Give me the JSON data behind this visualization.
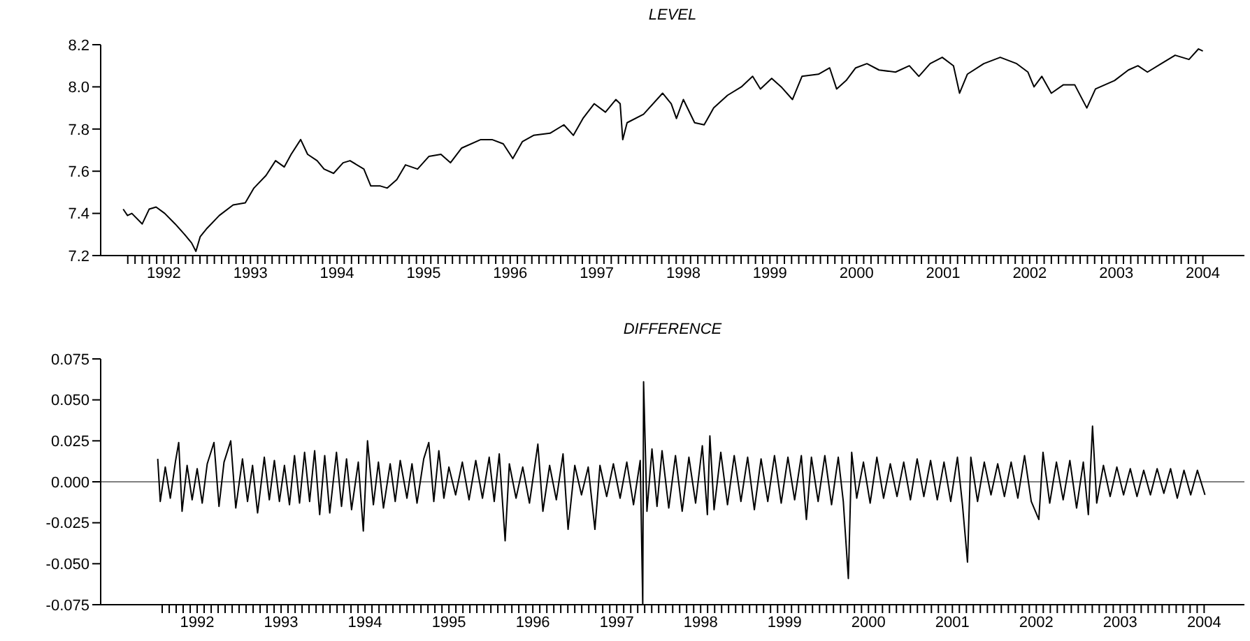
{
  "chart_data": [
    {
      "type": "line",
      "title": "LEVEL",
      "color": "#000000",
      "x": [
        1991.53,
        1991.58,
        1991.63,
        1991.75,
        1991.83,
        1991.91,
        1992.01,
        1992.13,
        1992.24,
        1992.32,
        1992.37,
        1992.42,
        1992.5,
        1992.64,
        1992.8,
        1992.94,
        1993.04,
        1993.18,
        1993.29,
        1993.39,
        1993.47,
        1993.58,
        1993.66,
        1993.77,
        1993.85,
        1993.96,
        1994.07,
        1994.15,
        1994.31,
        1994.39,
        1994.5,
        1994.58,
        1994.69,
        1994.79,
        1994.93,
        1995.06,
        1995.2,
        1995.31,
        1995.44,
        1995.66,
        1995.79,
        1995.92,
        1996.03,
        1996.14,
        1996.27,
        1996.46,
        1996.62,
        1996.73,
        1996.84,
        1996.97,
        1997.1,
        1997.22,
        1997.27,
        1997.3,
        1997.35,
        1997.54,
        1997.76,
        1997.86,
        1997.92,
        1998.0,
        1998.13,
        1998.24,
        1998.35,
        1998.51,
        1998.67,
        1998.8,
        1998.89,
        1999.02,
        1999.13,
        1999.26,
        1999.37,
        1999.56,
        1999.69,
        1999.77,
        1999.88,
        1999.99,
        2000.12,
        2000.26,
        2000.45,
        2000.61,
        2000.72,
        2000.85,
        2000.99,
        2001.12,
        2001.19,
        2001.28,
        2001.47,
        2001.66,
        2001.85,
        2001.98,
        2002.05,
        2002.14,
        2002.25,
        2002.39,
        2002.52,
        2002.66,
        2002.76,
        2002.98,
        2003.14,
        2003.25,
        2003.36,
        2003.52,
        2003.68,
        2003.84,
        2003.95,
        2004.0
      ],
      "values": [
        7.42,
        7.39,
        7.4,
        7.35,
        7.42,
        7.43,
        7.4,
        7.35,
        7.3,
        7.26,
        7.22,
        7.29,
        7.33,
        7.39,
        7.44,
        7.45,
        7.52,
        7.58,
        7.65,
        7.62,
        7.68,
        7.75,
        7.68,
        7.65,
        7.61,
        7.59,
        7.64,
        7.65,
        7.61,
        7.53,
        7.53,
        7.52,
        7.56,
        7.63,
        7.61,
        7.67,
        7.68,
        7.64,
        7.71,
        7.75,
        7.75,
        7.73,
        7.66,
        7.74,
        7.77,
        7.78,
        7.82,
        7.77,
        7.85,
        7.92,
        7.88,
        7.94,
        7.92,
        7.75,
        7.83,
        7.87,
        7.97,
        7.92,
        7.85,
        7.94,
        7.83,
        7.82,
        7.9,
        7.96,
        8.0,
        8.05,
        7.99,
        8.04,
        8.0,
        7.94,
        8.05,
        8.06,
        8.09,
        7.99,
        8.03,
        8.09,
        8.11,
        8.08,
        8.07,
        8.1,
        8.05,
        8.11,
        8.14,
        8.1,
        7.97,
        8.06,
        8.11,
        8.14,
        8.11,
        8.07,
        8.0,
        8.05,
        7.97,
        8.01,
        8.01,
        7.9,
        7.99,
        8.03,
        8.08,
        8.1,
        8.07,
        8.11,
        8.15,
        8.13,
        8.18,
        8.17
      ],
      "xlim": [
        1991.27,
        2004.48
      ],
      "ylim": [
        7.2,
        8.2
      ],
      "yticks": [
        7.2,
        7.4,
        7.6,
        7.8,
        {
          "value": 8.0,
          "label": "8.0"
        },
        8.2
      ],
      "xticks": [
        {
          "value": 1991.583,
          "label": null
        },
        {
          "value": 1991.667,
          "label": null
        },
        {
          "value": 1991.75,
          "label": null
        },
        {
          "value": 1991.833,
          "label": null
        },
        {
          "value": 1991.917,
          "label": null
        },
        1992,
        {
          "value": 1992.083,
          "label": null
        },
        {
          "value": 1992.167,
          "label": null
        },
        {
          "value": 1992.25,
          "label": null
        },
        {
          "value": 1992.333,
          "label": null
        },
        {
          "value": 1992.417,
          "label": null
        },
        {
          "value": 1992.5,
          "label": null
        },
        {
          "value": 1992.583,
          "label": null
        },
        {
          "value": 1992.667,
          "label": null
        },
        {
          "value": 1992.75,
          "label": null
        },
        {
          "value": 1992.833,
          "label": null
        },
        {
          "value": 1992.917,
          "label": null
        },
        1993,
        {
          "value": 1993.083,
          "label": null
        },
        {
          "value": 1993.167,
          "label": null
        },
        {
          "value": 1993.25,
          "label": null
        },
        {
          "value": 1993.333,
          "label": null
        },
        {
          "value": 1993.417,
          "label": null
        },
        {
          "value": 1993.5,
          "label": null
        },
        {
          "value": 1993.583,
          "label": null
        },
        {
          "value": 1993.667,
          "label": null
        },
        {
          "value": 1993.75,
          "label": null
        },
        {
          "value": 1993.833,
          "label": null
        },
        {
          "value": 1993.917,
          "label": null
        },
        1994,
        {
          "value": 1994.083,
          "label": null
        },
        {
          "value": 1994.167,
          "label": null
        },
        {
          "value": 1994.25,
          "label": null
        },
        {
          "value": 1994.333,
          "label": null
        },
        {
          "value": 1994.417,
          "label": null
        },
        {
          "value": 1994.5,
          "label": null
        },
        {
          "value": 1994.583,
          "label": null
        },
        {
          "value": 1994.667,
          "label": null
        },
        {
          "value": 1994.75,
          "label": null
        },
        {
          "value": 1994.833,
          "label": null
        },
        {
          "value": 1994.917,
          "label": null
        },
        1995,
        {
          "value": 1995.083,
          "label": null
        },
        {
          "value": 1995.167,
          "label": null
        },
        {
          "value": 1995.25,
          "label": null
        },
        {
          "value": 1995.333,
          "label": null
        },
        {
          "value": 1995.417,
          "label": null
        },
        {
          "value": 1995.5,
          "label": null
        },
        {
          "value": 1995.583,
          "label": null
        },
        {
          "value": 1995.667,
          "label": null
        },
        {
          "value": 1995.75,
          "label": null
        },
        {
          "value": 1995.833,
          "label": null
        },
        {
          "value": 1995.917,
          "label": null
        },
        1996,
        {
          "value": 1996.083,
          "label": null
        },
        {
          "value": 1996.167,
          "label": null
        },
        {
          "value": 1996.25,
          "label": null
        },
        {
          "value": 1996.333,
          "label": null
        },
        {
          "value": 1996.417,
          "label": null
        },
        {
          "value": 1996.5,
          "label": null
        },
        {
          "value": 1996.583,
          "label": null
        },
        {
          "value": 1996.667,
          "label": null
        },
        {
          "value": 1996.75,
          "label": null
        },
        {
          "value": 1996.833,
          "label": null
        },
        {
          "value": 1996.917,
          "label": null
        },
        1997,
        {
          "value": 1997.083,
          "label": null
        },
        {
          "value": 1997.167,
          "label": null
        },
        {
          "value": 1997.25,
          "label": null
        },
        {
          "value": 1997.333,
          "label": null
        },
        {
          "value": 1997.417,
          "label": null
        },
        {
          "value": 1997.5,
          "label": null
        },
        {
          "value": 1997.583,
          "label": null
        },
        {
          "value": 1997.667,
          "label": null
        },
        {
          "value": 1997.75,
          "label": null
        },
        {
          "value": 1997.833,
          "label": null
        },
        {
          "value": 1997.917,
          "label": null
        },
        1998,
        {
          "value": 1998.083,
          "label": null
        },
        {
          "value": 1998.167,
          "label": null
        },
        {
          "value": 1998.25,
          "label": null
        },
        {
          "value": 1998.333,
          "label": null
        },
        {
          "value": 1998.417,
          "label": null
        },
        {
          "value": 1998.5,
          "label": null
        },
        {
          "value": 1998.583,
          "label": null
        },
        {
          "value": 1998.667,
          "label": null
        },
        {
          "value": 1998.75,
          "label": null
        },
        {
          "value": 1998.833,
          "label": null
        },
        {
          "value": 1998.917,
          "label": null
        },
        1999,
        {
          "value": 1999.083,
          "label": null
        },
        {
          "value": 1999.167,
          "label": null
        },
        {
          "value": 1999.25,
          "label": null
        },
        {
          "value": 1999.333,
          "label": null
        },
        {
          "value": 1999.417,
          "label": null
        },
        {
          "value": 1999.5,
          "label": null
        },
        {
          "value": 1999.583,
          "label": null
        },
        {
          "value": 1999.667,
          "label": null
        },
        {
          "value": 1999.75,
          "label": null
        },
        {
          "value": 1999.833,
          "label": null
        },
        {
          "value": 1999.917,
          "label": null
        },
        2000,
        {
          "value": 2000.083,
          "label": null
        },
        {
          "value": 2000.167,
          "label": null
        },
        {
          "value": 2000.25,
          "label": null
        },
        {
          "value": 2000.333,
          "label": null
        },
        {
          "value": 2000.417,
          "label": null
        },
        {
          "value": 2000.5,
          "label": null
        },
        {
          "value": 2000.583,
          "label": null
        },
        {
          "value": 2000.667,
          "label": null
        },
        {
          "value": 2000.75,
          "label": null
        },
        {
          "value": 2000.833,
          "label": null
        },
        {
          "value": 2000.917,
          "label": null
        },
        2001,
        {
          "value": 2001.083,
          "label": null
        },
        {
          "value": 2001.167,
          "label": null
        },
        {
          "value": 2001.25,
          "label": null
        },
        {
          "value": 2001.333,
          "label": null
        },
        {
          "value": 2001.417,
          "label": null
        },
        {
          "value": 2001.5,
          "label": null
        },
        {
          "value": 2001.583,
          "label": null
        },
        {
          "value": 2001.667,
          "label": null
        },
        {
          "value": 2001.75,
          "label": null
        },
        {
          "value": 2001.833,
          "label": null
        },
        {
          "value": 2001.917,
          "label": null
        },
        2002,
        {
          "value": 2002.083,
          "label": null
        },
        {
          "value": 2002.167,
          "label": null
        },
        {
          "value": 2002.25,
          "label": null
        },
        {
          "value": 2002.333,
          "label": null
        },
        {
          "value": 2002.417,
          "label": null
        },
        {
          "value": 2002.5,
          "label": null
        },
        {
          "value": 2002.583,
          "label": null
        },
        {
          "value": 2002.667,
          "label": null
        },
        {
          "value": 2002.75,
          "label": null
        },
        {
          "value": 2002.833,
          "label": null
        },
        {
          "value": 2002.917,
          "label": null
        },
        2003,
        {
          "value": 2003.083,
          "label": null
        },
        {
          "value": 2003.167,
          "label": null
        },
        {
          "value": 2003.25,
          "label": null
        },
        {
          "value": 2003.333,
          "label": null
        },
        {
          "value": 2003.417,
          "label": null
        },
        {
          "value": 2003.5,
          "label": null
        },
        {
          "value": 2003.583,
          "label": null
        },
        {
          "value": 2003.667,
          "label": null
        },
        {
          "value": 2003.75,
          "label": null
        },
        {
          "value": 2003.833,
          "label": null
        },
        {
          "value": 2003.917,
          "label": null
        },
        2004
      ]
    },
    {
      "type": "line",
      "title": "DIFFERENCE",
      "color": "#000000",
      "x": [
        1991.53,
        1991.56,
        1991.62,
        1991.68,
        1991.74,
        1991.78,
        1991.82,
        1991.88,
        1991.94,
        1992.0,
        1992.06,
        1992.12,
        1992.2,
        1992.26,
        1992.32,
        1992.4,
        1992.46,
        1992.54,
        1992.6,
        1992.66,
        1992.72,
        1992.8,
        1992.86,
        1992.92,
        1992.98,
        1993.04,
        1993.1,
        1993.16,
        1993.22,
        1993.28,
        1993.34,
        1993.4,
        1993.46,
        1993.52,
        1993.58,
        1993.66,
        1993.72,
        1993.78,
        1993.84,
        1993.92,
        1993.98,
        1994.03,
        1994.1,
        1994.16,
        1994.22,
        1994.3,
        1994.36,
        1994.42,
        1994.5,
        1994.56,
        1994.62,
        1994.7,
        1994.76,
        1994.82,
        1994.88,
        1994.94,
        1995.0,
        1995.08,
        1995.16,
        1995.24,
        1995.32,
        1995.4,
        1995.48,
        1995.54,
        1995.6,
        1995.67,
        1995.72,
        1995.8,
        1995.88,
        1995.96,
        1996.06,
        1996.12,
        1996.2,
        1996.28,
        1996.36,
        1996.42,
        1996.5,
        1996.58,
        1996.66,
        1996.74,
        1996.8,
        1996.88,
        1996.96,
        1997.04,
        1997.12,
        1997.2,
        1997.28,
        1997.31,
        1997.32,
        1997.36,
        1997.42,
        1997.48,
        1997.54,
        1997.62,
        1997.7,
        1997.78,
        1997.86,
        1997.94,
        1998.02,
        1998.08,
        1998.11,
        1998.16,
        1998.24,
        1998.32,
        1998.4,
        1998.48,
        1998.56,
        1998.64,
        1998.72,
        1998.8,
        1998.88,
        1998.96,
        1999.04,
        1999.12,
        1999.2,
        1999.26,
        1999.32,
        1999.4,
        1999.48,
        1999.56,
        1999.64,
        1999.7,
        1999.76,
        1999.8,
        1999.86,
        1999.94,
        2000.02,
        2000.1,
        2000.18,
        2000.26,
        2000.34,
        2000.42,
        2000.5,
        2000.58,
        2000.66,
        2000.74,
        2000.82,
        2000.9,
        2000.98,
        2001.06,
        2001.12,
        2001.18,
        2001.22,
        2001.3,
        2001.38,
        2001.46,
        2001.54,
        2001.62,
        2001.7,
        2001.78,
        2001.86,
        2001.94,
        2002.03,
        2002.08,
        2002.16,
        2002.24,
        2002.32,
        2002.4,
        2002.48,
        2002.56,
        2002.62,
        2002.67,
        2002.72,
        2002.8,
        2002.88,
        2002.96,
        2003.04,
        2003.12,
        2003.2,
        2003.28,
        2003.36,
        2003.44,
        2003.52,
        2003.6,
        2003.68,
        2003.76,
        2003.84,
        2003.92,
        2004.01
      ],
      "values": [
        0.014,
        -0.012,
        0.009,
        -0.01,
        0.012,
        0.024,
        -0.018,
        0.01,
        -0.011,
        0.008,
        -0.013,
        0.011,
        0.024,
        -0.015,
        0.012,
        0.025,
        -0.016,
        0.014,
        -0.012,
        0.01,
        -0.019,
        0.015,
        -0.011,
        0.013,
        -0.012,
        0.01,
        -0.014,
        0.016,
        -0.013,
        0.018,
        -0.012,
        0.019,
        -0.02,
        0.016,
        -0.019,
        0.018,
        -0.015,
        0.014,
        -0.017,
        0.012,
        -0.03,
        0.025,
        -0.014,
        0.012,
        -0.016,
        0.011,
        -0.012,
        0.013,
        -0.01,
        0.011,
        -0.013,
        0.014,
        0.024,
        -0.012,
        0.019,
        -0.01,
        0.009,
        -0.008,
        0.012,
        -0.011,
        0.013,
        -0.01,
        0.015,
        -0.012,
        0.017,
        -0.036,
        0.011,
        -0.01,
        0.009,
        -0.013,
        0.023,
        -0.018,
        0.01,
        -0.011,
        0.017,
        -0.029,
        0.01,
        -0.008,
        0.009,
        -0.029,
        0.01,
        -0.009,
        0.011,
        -0.01,
        0.012,
        -0.014,
        0.013,
        -0.075,
        0.061,
        -0.018,
        0.02,
        -0.015,
        0.019,
        -0.016,
        0.016,
        -0.018,
        0.015,
        -0.013,
        0.022,
        -0.02,
        0.028,
        -0.017,
        0.018,
        -0.014,
        0.016,
        -0.012,
        0.015,
        -0.017,
        0.014,
        -0.012,
        0.016,
        -0.013,
        0.015,
        -0.011,
        0.016,
        -0.023,
        0.015,
        -0.012,
        0.016,
        -0.014,
        0.015,
        -0.012,
        -0.059,
        0.018,
        -0.01,
        0.012,
        -0.013,
        0.015,
        -0.01,
        0.011,
        -0.009,
        0.012,
        -0.011,
        0.014,
        -0.009,
        0.013,
        -0.011,
        0.012,
        -0.012,
        0.015,
        -0.014,
        -0.049,
        0.015,
        -0.012,
        0.012,
        -0.008,
        0.011,
        -0.009,
        0.012,
        -0.01,
        0.016,
        -0.012,
        -0.023,
        0.018,
        -0.013,
        0.012,
        -0.011,
        0.013,
        -0.016,
        0.012,
        -0.02,
        0.034,
        -0.013,
        0.01,
        -0.009,
        0.009,
        -0.008,
        0.008,
        -0.009,
        0.007,
        -0.008,
        0.008,
        -0.007,
        0.008,
        -0.01,
        0.007,
        -0.008,
        0.007,
        -0.008
      ],
      "xlim": [
        1990.85,
        2004.48
      ],
      "ylim": [
        -0.075,
        0.075
      ],
      "yticks": [
        {
          "value": -0.075,
          "label": "-0.075"
        },
        {
          "value": -0.05,
          "label": "-0.050"
        },
        {
          "value": -0.025,
          "label": "-0.025"
        },
        {
          "value": 0,
          "label": "0.000"
        },
        {
          "value": 0.025,
          "label": "0.025"
        },
        {
          "value": 0.05,
          "label": "0.050"
        },
        {
          "value": 0.075,
          "label": "0.075"
        }
      ],
      "ref_lines": [
        {
          "axis": "y",
          "value": 0,
          "color": "#808080"
        }
      ],
      "xticks": [
        {
          "value": 1991.583,
          "label": null
        },
        {
          "value": 1991.667,
          "label": null
        },
        {
          "value": 1991.75,
          "label": null
        },
        {
          "value": 1991.833,
          "label": null
        },
        {
          "value": 1991.917,
          "label": null
        },
        1992,
        {
          "value": 1992.083,
          "label": null
        },
        {
          "value": 1992.167,
          "label": null
        },
        {
          "value": 1992.25,
          "label": null
        },
        {
          "value": 1992.333,
          "label": null
        },
        {
          "value": 1992.417,
          "label": null
        },
        {
          "value": 1992.5,
          "label": null
        },
        {
          "value": 1992.583,
          "label": null
        },
        {
          "value": 1992.667,
          "label": null
        },
        {
          "value": 1992.75,
          "label": null
        },
        {
          "value": 1992.833,
          "label": null
        },
        {
          "value": 1992.917,
          "label": null
        },
        1993,
        {
          "value": 1993.083,
          "label": null
        },
        {
          "value": 1993.167,
          "label": null
        },
        {
          "value": 1993.25,
          "label": null
        },
        {
          "value": 1993.333,
          "label": null
        },
        {
          "value": 1993.417,
          "label": null
        },
        {
          "value": 1993.5,
          "label": null
        },
        {
          "value": 1993.583,
          "label": null
        },
        {
          "value": 1993.667,
          "label": null
        },
        {
          "value": 1993.75,
          "label": null
        },
        {
          "value": 1993.833,
          "label": null
        },
        {
          "value": 1993.917,
          "label": null
        },
        1994,
        {
          "value": 1994.083,
          "label": null
        },
        {
          "value": 1994.167,
          "label": null
        },
        {
          "value": 1994.25,
          "label": null
        },
        {
          "value": 1994.333,
          "label": null
        },
        {
          "value": 1994.417,
          "label": null
        },
        {
          "value": 1994.5,
          "label": null
        },
        {
          "value": 1994.583,
          "label": null
        },
        {
          "value": 1994.667,
          "label": null
        },
        {
          "value": 1994.75,
          "label": null
        },
        {
          "value": 1994.833,
          "label": null
        },
        {
          "value": 1994.917,
          "label": null
        },
        1995,
        {
          "value": 1995.083,
          "label": null
        },
        {
          "value": 1995.167,
          "label": null
        },
        {
          "value": 1995.25,
          "label": null
        },
        {
          "value": 1995.333,
          "label": null
        },
        {
          "value": 1995.417,
          "label": null
        },
        {
          "value": 1995.5,
          "label": null
        },
        {
          "value": 1995.583,
          "label": null
        },
        {
          "value": 1995.667,
          "label": null
        },
        {
          "value": 1995.75,
          "label": null
        },
        {
          "value": 1995.833,
          "label": null
        },
        {
          "value": 1995.917,
          "label": null
        },
        1996,
        {
          "value": 1996.083,
          "label": null
        },
        {
          "value": 1996.167,
          "label": null
        },
        {
          "value": 1996.25,
          "label": null
        },
        {
          "value": 1996.333,
          "label": null
        },
        {
          "value": 1996.417,
          "label": null
        },
        {
          "value": 1996.5,
          "label": null
        },
        {
          "value": 1996.583,
          "label": null
        },
        {
          "value": 1996.667,
          "label": null
        },
        {
          "value": 1996.75,
          "label": null
        },
        {
          "value": 1996.833,
          "label": null
        },
        {
          "value": 1996.917,
          "label": null
        },
        1997,
        {
          "value": 1997.083,
          "label": null
        },
        {
          "value": 1997.167,
          "label": null
        },
        {
          "value": 1997.25,
          "label": null
        },
        {
          "value": 1997.333,
          "label": null
        },
        {
          "value": 1997.417,
          "label": null
        },
        {
          "value": 1997.5,
          "label": null
        },
        {
          "value": 1997.583,
          "label": null
        },
        {
          "value": 1997.667,
          "label": null
        },
        {
          "value": 1997.75,
          "label": null
        },
        {
          "value": 1997.833,
          "label": null
        },
        {
          "value": 1997.917,
          "label": null
        },
        1998,
        {
          "value": 1998.083,
          "label": null
        },
        {
          "value": 1998.167,
          "label": null
        },
        {
          "value": 1998.25,
          "label": null
        },
        {
          "value": 1998.333,
          "label": null
        },
        {
          "value": 1998.417,
          "label": null
        },
        {
          "value": 1998.5,
          "label": null
        },
        {
          "value": 1998.583,
          "label": null
        },
        {
          "value": 1998.667,
          "label": null
        },
        {
          "value": 1998.75,
          "label": null
        },
        {
          "value": 1998.833,
          "label": null
        },
        {
          "value": 1998.917,
          "label": null
        },
        1999,
        {
          "value": 1999.083,
          "label": null
        },
        {
          "value": 1999.167,
          "label": null
        },
        {
          "value": 1999.25,
          "label": null
        },
        {
          "value": 1999.333,
          "label": null
        },
        {
          "value": 1999.417,
          "label": null
        },
        {
          "value": 1999.5,
          "label": null
        },
        {
          "value": 1999.583,
          "label": null
        },
        {
          "value": 1999.667,
          "label": null
        },
        {
          "value": 1999.75,
          "label": null
        },
        {
          "value": 1999.833,
          "label": null
        },
        {
          "value": 1999.917,
          "label": null
        },
        2000,
        {
          "value": 2000.083,
          "label": null
        },
        {
          "value": 2000.167,
          "label": null
        },
        {
          "value": 2000.25,
          "label": null
        },
        {
          "value": 2000.333,
          "label": null
        },
        {
          "value": 2000.417,
          "label": null
        },
        {
          "value": 2000.5,
          "label": null
        },
        {
          "value": 2000.583,
          "label": null
        },
        {
          "value": 2000.667,
          "label": null
        },
        {
          "value": 2000.75,
          "label": null
        },
        {
          "value": 2000.833,
          "label": null
        },
        {
          "value": 2000.917,
          "label": null
        },
        2001,
        {
          "value": 2001.083,
          "label": null
        },
        {
          "value": 2001.167,
          "label": null
        },
        {
          "value": 2001.25,
          "label": null
        },
        {
          "value": 2001.333,
          "label": null
        },
        {
          "value": 2001.417,
          "label": null
        },
        {
          "value": 2001.5,
          "label": null
        },
        {
          "value": 2001.583,
          "label": null
        },
        {
          "value": 2001.667,
          "label": null
        },
        {
          "value": 2001.75,
          "label": null
        },
        {
          "value": 2001.833,
          "label": null
        },
        {
          "value": 2001.917,
          "label": null
        },
        2002,
        {
          "value": 2002.083,
          "label": null
        },
        {
          "value": 2002.167,
          "label": null
        },
        {
          "value": 2002.25,
          "label": null
        },
        {
          "value": 2002.333,
          "label": null
        },
        {
          "value": 2002.417,
          "label": null
        },
        {
          "value": 2002.5,
          "label": null
        },
        {
          "value": 2002.583,
          "label": null
        },
        {
          "value": 2002.667,
          "label": null
        },
        {
          "value": 2002.75,
          "label": null
        },
        {
          "value": 2002.833,
          "label": null
        },
        {
          "value": 2002.917,
          "label": null
        },
        2003,
        {
          "value": 2003.083,
          "label": null
        },
        {
          "value": 2003.167,
          "label": null
        },
        {
          "value": 2003.25,
          "label": null
        },
        {
          "value": 2003.333,
          "label": null
        },
        {
          "value": 2003.417,
          "label": null
        },
        {
          "value": 2003.5,
          "label": null
        },
        {
          "value": 2003.583,
          "label": null
        },
        {
          "value": 2003.667,
          "label": null
        },
        {
          "value": 2003.75,
          "label": null
        },
        {
          "value": 2003.833,
          "label": null
        },
        {
          "value": 2003.917,
          "label": null
        },
        2004
      ]
    }
  ]
}
